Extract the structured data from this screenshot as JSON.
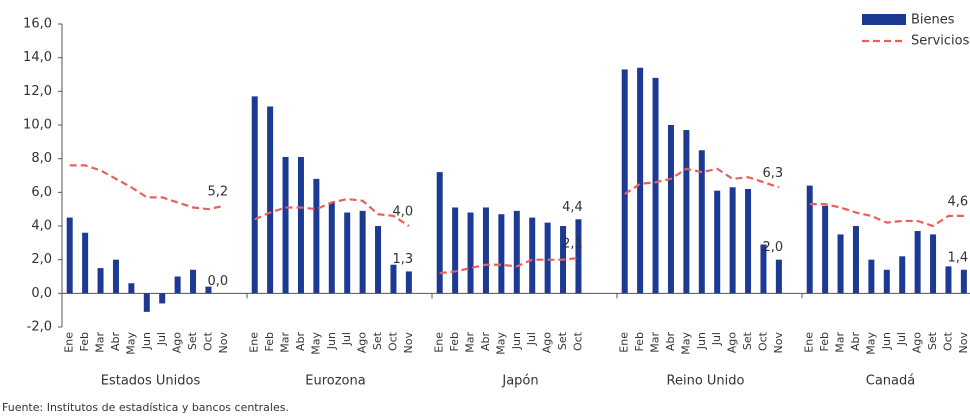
{
  "chart_data": {
    "type": "bar",
    "ylim": [
      -2,
      16
    ],
    "yticks": [
      {
        "value": -2,
        "label": "-2,0"
      },
      {
        "value": 0,
        "label": "0,0"
      },
      {
        "value": 2,
        "label": "2,0"
      },
      {
        "value": 4,
        "label": "4,0"
      },
      {
        "value": 6,
        "label": "6,0"
      },
      {
        "value": 8,
        "label": "8,0"
      },
      {
        "value": 10,
        "label": "10,0"
      },
      {
        "value": 12,
        "label": "12,0"
      },
      {
        "value": 14,
        "label": "14,0"
      },
      {
        "value": 16,
        "label": "16,0"
      }
    ],
    "groups": [
      {
        "name": "Estados Unidos",
        "categories": [
          "Ene",
          "Feb",
          "Mar",
          "Abr",
          "May",
          "Jun",
          "Jul",
          "Ago",
          "Set",
          "Oct",
          "Nov"
        ]
      },
      {
        "name": "Eurozona",
        "categories": [
          "Ene",
          "Feb",
          "Mar",
          "Abr",
          "May",
          "Jun",
          "Jul",
          "Ago",
          "Set",
          "Oct",
          "Nov"
        ]
      },
      {
        "name": "Japón",
        "categories": [
          "Ene",
          "Feb",
          "Mar",
          "Abr",
          "May",
          "Jun",
          "Jul",
          "Ago",
          "Set",
          "Oct"
        ]
      },
      {
        "name": "Reino Unido",
        "categories": [
          "Ene",
          "Feb",
          "Mar",
          "Abr",
          "May",
          "Jun",
          "Jul",
          "Ago",
          "Set",
          "Oct",
          "Nov"
        ]
      },
      {
        "name": "Canadá",
        "categories": [
          "Ene",
          "Feb",
          "Mar",
          "Abr",
          "May",
          "Jun",
          "Jul",
          "Ago",
          "Set",
          "Oct",
          "Nov"
        ]
      }
    ],
    "series": [
      {
        "name": "Bienes",
        "color": "#1c3a94",
        "type": "bar",
        "values": [
          [
            4.5,
            3.6,
            1.5,
            2.0,
            0.6,
            -1.1,
            -0.6,
            1.0,
            1.4,
            0.4,
            0.0
          ],
          [
            11.7,
            11.1,
            8.1,
            8.1,
            6.8,
            5.4,
            4.8,
            4.9,
            4.0,
            1.7,
            1.3
          ],
          [
            7.2,
            5.1,
            4.8,
            5.1,
            4.7,
            4.9,
            4.5,
            4.2,
            4.0,
            4.4
          ],
          [
            13.3,
            13.4,
            12.8,
            10.0,
            9.7,
            8.5,
            6.1,
            6.3,
            6.2,
            2.9,
            2.0
          ],
          [
            6.4,
            5.2,
            3.5,
            4.0,
            2.0,
            1.4,
            2.2,
            3.7,
            3.5,
            1.6,
            1.4
          ]
        ],
        "value_labels": [
          [
            null,
            null,
            null,
            null,
            null,
            null,
            null,
            null,
            null,
            null,
            "0,0"
          ],
          [
            null,
            null,
            null,
            null,
            null,
            null,
            null,
            null,
            null,
            null,
            "1,3"
          ],
          [
            null,
            null,
            null,
            null,
            null,
            null,
            null,
            null,
            null,
            "4,4"
          ],
          [
            null,
            null,
            null,
            null,
            null,
            null,
            null,
            null,
            null,
            null,
            "2,0"
          ],
          [
            null,
            null,
            null,
            null,
            null,
            null,
            null,
            null,
            null,
            null,
            "1,4"
          ]
        ]
      },
      {
        "name": "Servicios",
        "color": "#e8605e",
        "type": "line",
        "values": [
          [
            7.6,
            7.6,
            7.3,
            6.8,
            6.3,
            5.7,
            5.7,
            5.4,
            5.1,
            5.0,
            5.2
          ],
          [
            4.4,
            4.8,
            5.1,
            5.1,
            5.0,
            5.4,
            5.6,
            5.5,
            4.7,
            4.6,
            4.0
          ],
          [
            1.2,
            1.3,
            1.5,
            1.7,
            1.7,
            1.6,
            2.0,
            2.0,
            2.0,
            2.1
          ],
          [
            5.9,
            6.5,
            6.6,
            6.8,
            7.4,
            7.2,
            7.4,
            6.8,
            6.9,
            6.6,
            6.3
          ],
          [
            5.3,
            5.3,
            5.1,
            4.8,
            4.6,
            4.2,
            4.3,
            4.3,
            4.0,
            4.6,
            4.6
          ]
        ],
        "value_labels": [
          [
            null,
            null,
            null,
            null,
            null,
            null,
            null,
            null,
            null,
            null,
            "5,2"
          ],
          [
            null,
            null,
            null,
            null,
            null,
            null,
            null,
            null,
            null,
            null,
            "4,0"
          ],
          [
            null,
            null,
            null,
            null,
            null,
            null,
            null,
            null,
            null,
            "2,1"
          ],
          [
            null,
            null,
            null,
            null,
            null,
            null,
            null,
            null,
            null,
            null,
            "6,3"
          ],
          [
            null,
            null,
            null,
            null,
            null,
            null,
            null,
            null,
            null,
            null,
            "4,6"
          ]
        ]
      }
    ],
    "source": "Fuente: Institutos de estadística y bancos centrales."
  }
}
